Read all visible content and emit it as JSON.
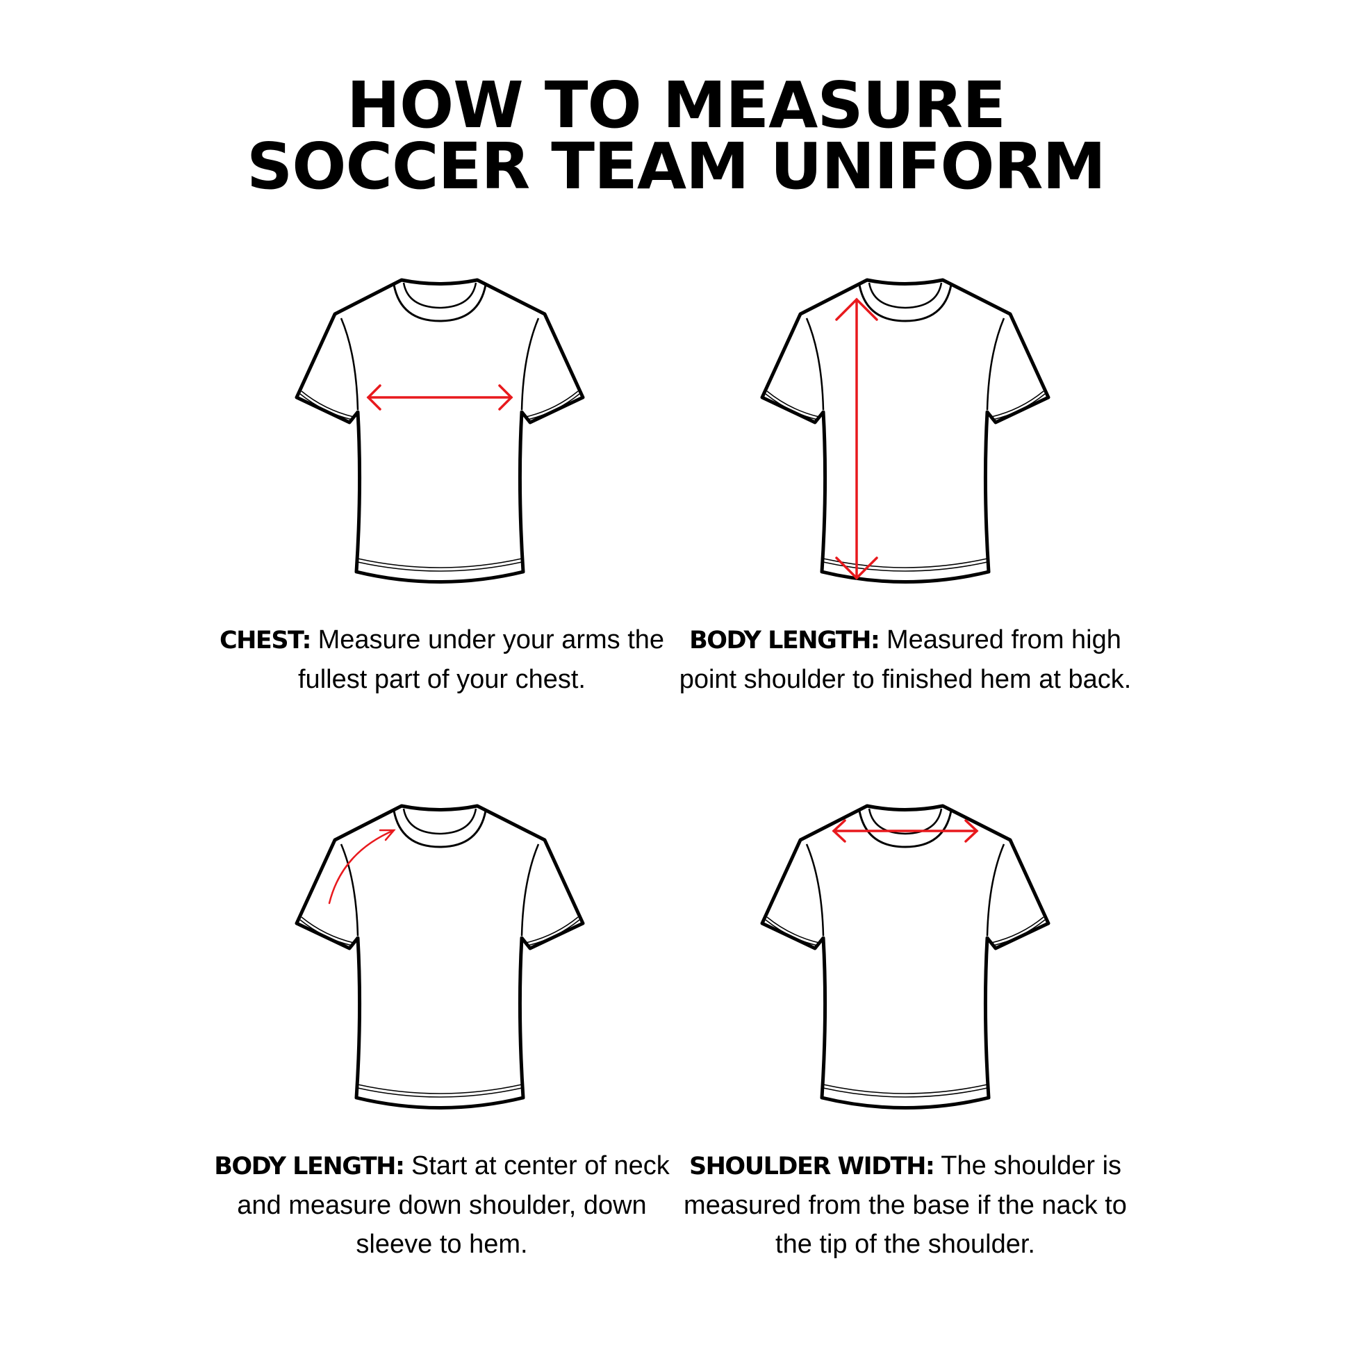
{
  "title": {
    "line1": "HOW TO MEASURE",
    "line2": "SOCCER TEAM UNIFORM"
  },
  "accent_color": "#e8191d",
  "panels": [
    {
      "label": "CHEST:",
      "text": "Measure under your arms the fullest part of your chest.",
      "measure": "chest-width-arrow"
    },
    {
      "label": "BODY LENGTH:",
      "text": "Measured from high point shoulder to finished hem at back.",
      "measure": "vertical-length-arrow"
    },
    {
      "label": "BODY LENGTH:",
      "text": "Start at center of neck and measure down shoulder, down sleeve to hem.",
      "measure": "curved-sleeve-arrow"
    },
    {
      "label": "SHOULDER WIDTH:",
      "text": "The shoulder is measured from the base if the nack to the tip of the shoulder.",
      "measure": "shoulder-width-arrow"
    }
  ]
}
